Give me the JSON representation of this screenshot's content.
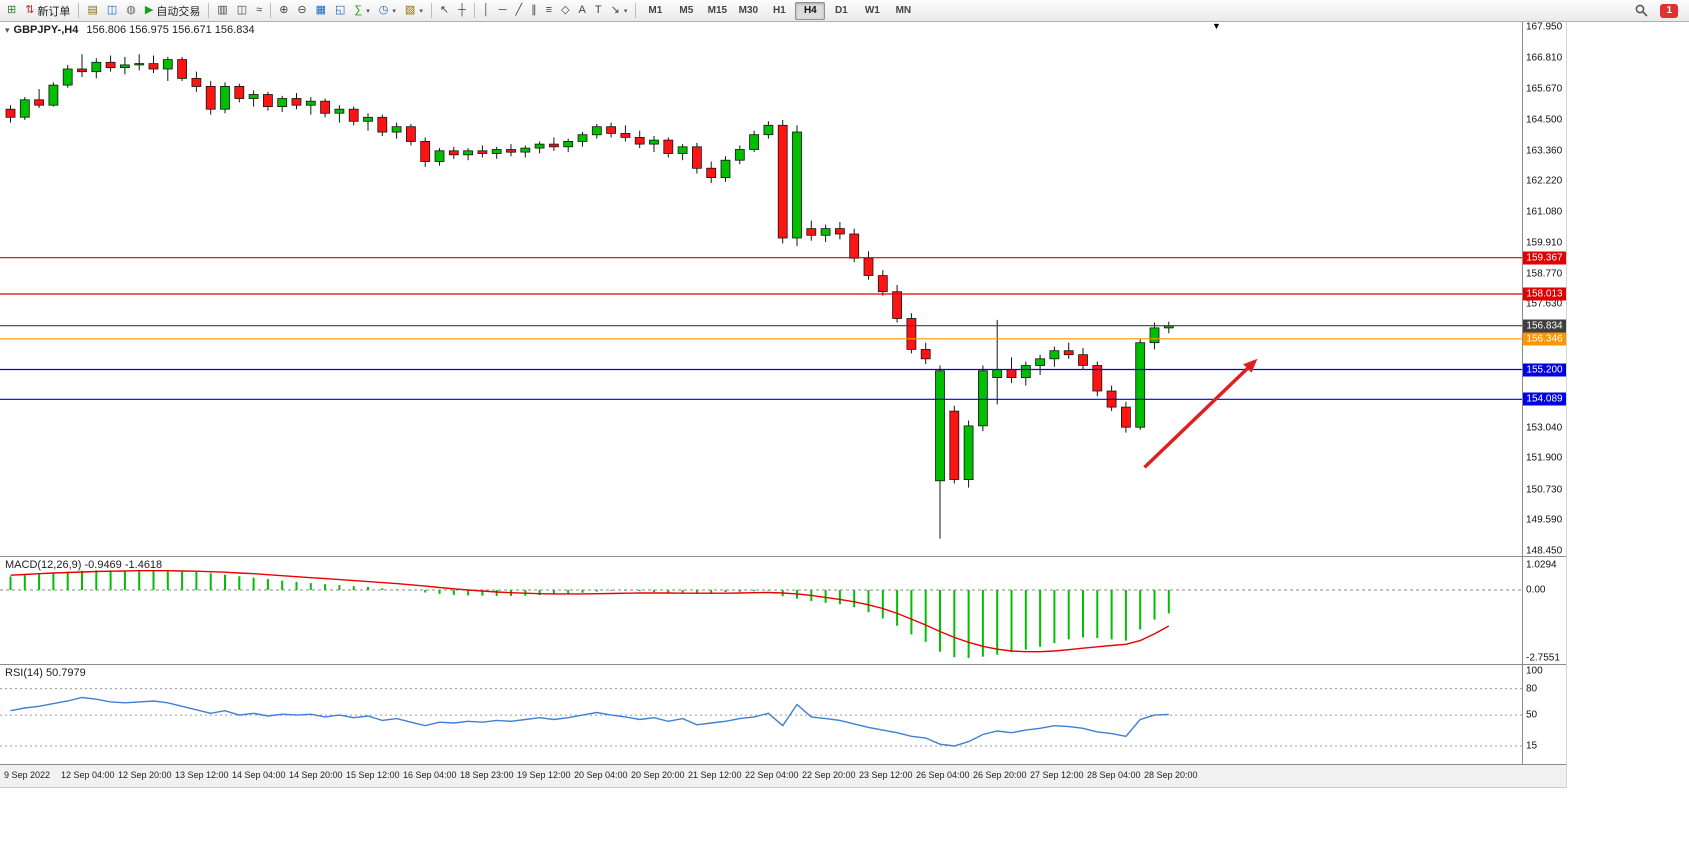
{
  "toolbar": {
    "items": [
      {
        "name": "new-chart",
        "glyph": "⊞",
        "color": "#2e7d32"
      },
      {
        "name": "new-order",
        "glyph": "⇅",
        "color": "#c62828",
        "label": "新订单"
      },
      {
        "sep": true
      },
      {
        "name": "chart-profiles",
        "glyph": "▤",
        "color": "#8d6e00"
      },
      {
        "name": "data-window",
        "glyph": "◫",
        "color": "#1565c0"
      },
      {
        "name": "navigator",
        "glyph": "◍",
        "color": "#666666"
      },
      {
        "name": "auto-trading",
        "glyph": "▶",
        "color": "#18a018",
        "label": "自动交易"
      },
      {
        "sep": true
      },
      {
        "name": "bar-chart-mode",
        "glyph": "▥",
        "color": "#444444"
      },
      {
        "name": "candlestick-mode",
        "glyph": "◫",
        "color": "#444444"
      },
      {
        "name": "line-chart-mode",
        "glyph": "≈",
        "color": "#444444"
      },
      {
        "sep": true
      },
      {
        "name": "zoom-in",
        "glyph": "⊕",
        "color": "#444444"
      },
      {
        "name": "zoom-out",
        "glyph": "⊖",
        "color": "#444444"
      },
      {
        "name": "tile-windows",
        "glyph": "▦",
        "color": "#1565c0"
      },
      {
        "name": "arrange-windows",
        "glyph": "◱",
        "color": "#1565c0"
      },
      {
        "name": "indicators",
        "glyph": "∑",
        "color": "#18a018",
        "dropdown": true
      },
      {
        "name": "periods",
        "glyph": "◷",
        "color": "#1565c0",
        "dropdown": true
      },
      {
        "name": "templates",
        "glyph": "▧",
        "color": "#8d6e00",
        "dropdown": true
      },
      {
        "sep": true
      },
      {
        "name": "cursor",
        "glyph": "↖",
        "color": "#444444"
      },
      {
        "name": "crosshair",
        "glyph": "┼",
        "color": "#444444"
      },
      {
        "sep": true
      },
      {
        "name": "vertical-line",
        "glyph": "│",
        "color": "#444444"
      },
      {
        "name": "horizontal-line",
        "glyph": "─",
        "color": "#444444"
      },
      {
        "name": "trendline",
        "glyph": "╱",
        "color": "#444444"
      },
      {
        "name": "equidistant-channel",
        "glyph": "∥",
        "color": "#444444"
      },
      {
        "name": "fibonacci",
        "glyph": "≡",
        "color": "#444444"
      },
      {
        "name": "shapes",
        "glyph": "◇",
        "color": "#444444"
      },
      {
        "name": "text",
        "glyph": "A",
        "color": "#444444"
      },
      {
        "name": "text-label",
        "glyph": "T",
        "color": "#444444"
      },
      {
        "name": "arrows-objects",
        "glyph": "↘",
        "color": "#444444",
        "dropdown": true
      },
      {
        "sep": true
      }
    ],
    "timeframes": [
      "M1",
      "M5",
      "M15",
      "M30",
      "H1",
      "H4",
      "D1",
      "W1",
      "MN"
    ],
    "active_timeframe": "H4",
    "notification_count": "1"
  },
  "chart": {
    "symbol_title": "GBPJPY-,H4",
    "ohlc": "156.806 156.975 156.671 156.834",
    "scroll_marker": "▼",
    "dropdown_glyph": "▾"
  },
  "chart_data": {
    "type": "candlestick",
    "symbol": "GBPJPY",
    "timeframe": "H4",
    "ohlc_display": {
      "open": "156.806",
      "high": "156.975",
      "low": "156.671",
      "close": "156.834"
    },
    "price_axis_labels": [
      "167.950",
      "166.810",
      "165.670",
      "164.500",
      "163.360",
      "162.220",
      "161.080",
      "159.910",
      "158.770",
      "157.630",
      "153.040",
      "151.900",
      "150.730",
      "149.590",
      "148.450"
    ],
    "hlines": [
      {
        "price": 159.367,
        "label": "159.367",
        "color": "#e00000"
      },
      {
        "price": 158.013,
        "label": "158.013",
        "color": "#e00000"
      },
      {
        "price": 156.834,
        "label": "156.834",
        "color": "#3f3f3f"
      },
      {
        "price": 156.346,
        "label": "156.346",
        "color": "#ff9500"
      },
      {
        "price": 155.2,
        "label": "155.200",
        "color": "#0000e0"
      },
      {
        "price": 154.089,
        "label": "154.089",
        "color": "#0000e0"
      }
    ],
    "trend_arrow": {
      "x1_index": 79.3,
      "price1": 151.55,
      "x2_index": 87.2,
      "price2": 155.6,
      "color": "#e02020"
    },
    "candles": [
      [
        164.9,
        165.05,
        164.4,
        164.6
      ],
      [
        164.6,
        165.35,
        164.5,
        165.25
      ],
      [
        165.25,
        165.65,
        164.95,
        165.05
      ],
      [
        165.05,
        165.9,
        165.0,
        165.8
      ],
      [
        165.8,
        166.55,
        165.7,
        166.4
      ],
      [
        166.4,
        166.95,
        166.1,
        166.3
      ],
      [
        166.3,
        166.8,
        166.05,
        166.65
      ],
      [
        166.65,
        166.9,
        166.3,
        166.45
      ],
      [
        166.45,
        166.85,
        166.2,
        166.55
      ],
      [
        166.55,
        166.95,
        166.35,
        166.6
      ],
      [
        166.6,
        166.9,
        166.25,
        166.4
      ],
      [
        166.4,
        166.85,
        165.95,
        166.75
      ],
      [
        166.75,
        166.85,
        165.95,
        166.05
      ],
      [
        166.05,
        166.3,
        165.55,
        165.75
      ],
      [
        165.75,
        165.95,
        164.7,
        164.9
      ],
      [
        164.9,
        165.9,
        164.75,
        165.75
      ],
      [
        165.75,
        165.85,
        165.15,
        165.3
      ],
      [
        165.3,
        165.6,
        165.0,
        165.45
      ],
      [
        165.45,
        165.55,
        164.85,
        165.0
      ],
      [
        165.0,
        165.4,
        164.8,
        165.3
      ],
      [
        165.3,
        165.5,
        164.9,
        165.05
      ],
      [
        165.05,
        165.35,
        164.7,
        165.2
      ],
      [
        165.2,
        165.3,
        164.6,
        164.75
      ],
      [
        164.75,
        165.05,
        164.4,
        164.9
      ],
      [
        164.9,
        165.0,
        164.3,
        164.45
      ],
      [
        164.45,
        164.75,
        164.1,
        164.6
      ],
      [
        164.6,
        164.7,
        163.9,
        164.05
      ],
      [
        164.05,
        164.4,
        163.8,
        164.25
      ],
      [
        164.25,
        164.35,
        163.55,
        163.7
      ],
      [
        163.7,
        163.85,
        162.75,
        162.95
      ],
      [
        162.95,
        163.45,
        162.8,
        163.35
      ],
      [
        163.35,
        163.5,
        163.05,
        163.2
      ],
      [
        163.2,
        163.45,
        163.0,
        163.35
      ],
      [
        163.35,
        163.55,
        163.1,
        163.25
      ],
      [
        163.25,
        163.5,
        163.05,
        163.4
      ],
      [
        163.4,
        163.6,
        163.15,
        163.3
      ],
      [
        163.3,
        163.55,
        163.1,
        163.45
      ],
      [
        163.45,
        163.7,
        163.25,
        163.6
      ],
      [
        163.6,
        163.85,
        163.35,
        163.5
      ],
      [
        163.5,
        163.8,
        163.3,
        163.7
      ],
      [
        163.7,
        164.05,
        163.5,
        163.95
      ],
      [
        163.95,
        164.35,
        163.8,
        164.25
      ],
      [
        164.25,
        164.4,
        163.85,
        164.0
      ],
      [
        164.0,
        164.3,
        163.7,
        163.85
      ],
      [
        163.85,
        164.1,
        163.45,
        163.6
      ],
      [
        163.6,
        163.9,
        163.3,
        163.75
      ],
      [
        163.75,
        163.85,
        163.1,
        163.25
      ],
      [
        163.25,
        163.6,
        163.0,
        163.5
      ],
      [
        163.5,
        163.65,
        162.5,
        162.7
      ],
      [
        162.7,
        162.95,
        162.15,
        162.35
      ],
      [
        162.35,
        163.15,
        162.2,
        163.0
      ],
      [
        163.0,
        163.55,
        162.85,
        163.4
      ],
      [
        163.4,
        164.1,
        163.3,
        163.95
      ],
      [
        163.95,
        164.45,
        163.8,
        164.3
      ],
      [
        164.3,
        164.5,
        159.9,
        160.1
      ],
      [
        160.1,
        164.3,
        159.8,
        164.05
      ],
      [
        160.45,
        160.75,
        160.0,
        160.2
      ],
      [
        160.2,
        160.6,
        159.95,
        160.45
      ],
      [
        160.45,
        160.7,
        160.05,
        160.25
      ],
      [
        160.25,
        160.45,
        159.2,
        159.35
      ],
      [
        159.35,
        159.6,
        158.55,
        158.7
      ],
      [
        158.7,
        158.9,
        157.95,
        158.1
      ],
      [
        158.1,
        158.35,
        156.95,
        157.1
      ],
      [
        157.1,
        157.3,
        155.8,
        155.95
      ],
      [
        155.95,
        156.2,
        155.4,
        155.6
      ],
      [
        151.05,
        155.35,
        148.9,
        155.15
      ],
      [
        153.65,
        153.85,
        150.95,
        151.1
      ],
      [
        151.1,
        153.3,
        150.8,
        153.1
      ],
      [
        153.1,
        155.35,
        152.9,
        155.15
      ],
      [
        154.9,
        157.05,
        153.9,
        155.2
      ],
      [
        155.2,
        155.65,
        154.7,
        154.9
      ],
      [
        154.9,
        155.5,
        154.6,
        155.35
      ],
      [
        155.35,
        155.75,
        155.0,
        155.6
      ],
      [
        155.6,
        156.05,
        155.3,
        155.9
      ],
      [
        155.9,
        156.2,
        155.6,
        155.75
      ],
      [
        155.75,
        156.0,
        155.2,
        155.35
      ],
      [
        155.35,
        155.5,
        154.2,
        154.4
      ],
      [
        154.4,
        154.6,
        153.65,
        153.8
      ],
      [
        153.8,
        154.0,
        152.85,
        153.05
      ],
      [
        153.05,
        156.35,
        152.95,
        156.2
      ],
      [
        156.2,
        156.95,
        155.95,
        156.75
      ],
      [
        156.75,
        156.98,
        156.55,
        156.83
      ]
    ],
    "time_labels": [
      "9 Sep 2022",
      "12 Sep 04:00",
      "12 Sep 20:00",
      "13 Sep 12:00",
      "14 Sep 04:00",
      "14 Sep 20:00",
      "15 Sep 12:00",
      "16 Sep 04:00",
      "18 Sep 23:00",
      "19 Sep 12:00",
      "20 Sep 04:00",
      "20 Sep 20:00",
      "21 Sep 12:00",
      "22 Sep 04:00",
      "22 Sep 20:00",
      "23 Sep 12:00",
      "26 Sep 04:00",
      "26 Sep 20:00",
      "27 Sep 12:00",
      "28 Sep 04:00",
      "28 Sep 20:00"
    ],
    "macd": {
      "label": "MACD(12,26,9)",
      "main_value": "-0.9469",
      "signal_value": "-1.4618",
      "axis_labels": [
        "1.0294",
        "0.00",
        "-2.7551"
      ],
      "histogram": [
        0.55,
        0.6,
        0.65,
        0.7,
        0.74,
        0.78,
        0.8,
        0.8,
        0.79,
        0.78,
        0.78,
        0.77,
        0.76,
        0.73,
        0.68,
        0.62,
        0.56,
        0.5,
        0.44,
        0.38,
        0.33,
        0.28,
        0.24,
        0.2,
        0.16,
        0.12,
        0.07,
        0.03,
        -0.02,
        -0.1,
        -0.16,
        -0.2,
        -0.22,
        -0.23,
        -0.24,
        -0.24,
        -0.23,
        -0.21,
        -0.18,
        -0.15,
        -0.11,
        -0.06,
        -0.03,
        -0.03,
        -0.05,
        -0.08,
        -0.12,
        -0.14,
        -0.13,
        -0.1,
        -0.08,
        -0.07,
        -0.05,
        -0.03,
        -0.25,
        -0.35,
        -0.45,
        -0.52,
        -0.58,
        -0.7,
        -0.9,
        -1.15,
        -1.45,
        -1.8,
        -2.1,
        -2.5,
        -2.72,
        -2.75,
        -2.7,
        -2.62,
        -2.52,
        -2.42,
        -2.3,
        -2.15,
        -2.0,
        -1.92,
        -1.95,
        -2.0,
        -2.05,
        -1.6,
        -1.2,
        -0.95
      ],
      "signal": [
        0.6,
        0.63,
        0.66,
        0.69,
        0.71,
        0.73,
        0.75,
        0.76,
        0.77,
        0.78,
        0.78,
        0.78,
        0.77,
        0.76,
        0.74,
        0.72,
        0.69,
        0.66,
        0.62,
        0.58,
        0.54,
        0.5,
        0.46,
        0.42,
        0.38,
        0.34,
        0.3,
        0.26,
        0.21,
        0.16,
        0.1,
        0.05,
        0.0,
        -0.04,
        -0.08,
        -0.11,
        -0.13,
        -0.15,
        -0.16,
        -0.16,
        -0.16,
        -0.15,
        -0.14,
        -0.13,
        -0.12,
        -0.12,
        -0.12,
        -0.13,
        -0.13,
        -0.13,
        -0.13,
        -0.12,
        -0.11,
        -0.1,
        -0.12,
        -0.16,
        -0.22,
        -0.3,
        -0.38,
        -0.48,
        -0.6,
        -0.75,
        -0.95,
        -1.18,
        -1.42,
        -1.68,
        -1.92,
        -2.12,
        -2.28,
        -2.4,
        -2.47,
        -2.5,
        -2.5,
        -2.47,
        -2.42,
        -2.36,
        -2.3,
        -2.25,
        -2.2,
        -2.05,
        -1.78,
        -1.46
      ]
    },
    "rsi": {
      "label": "RSI(14)",
      "value": "50.7979",
      "levels": [
        80,
        50,
        15
      ],
      "axis_labels": [
        "100",
        "80",
        "50",
        "15"
      ],
      "series": [
        55,
        58,
        60,
        63,
        66,
        70,
        68,
        65,
        64,
        65,
        66,
        64,
        60,
        56,
        52,
        55,
        50,
        52,
        49,
        51,
        50,
        51,
        48,
        50,
        47,
        49,
        44,
        46,
        42,
        38,
        42,
        41,
        43,
        42,
        44,
        43,
        45,
        47,
        45,
        47,
        50,
        53,
        50,
        48,
        45,
        47,
        43,
        46,
        39,
        41,
        43,
        46,
        48,
        52,
        38,
        62,
        48,
        46,
        44,
        40,
        36,
        33,
        30,
        26,
        24,
        17,
        15,
        20,
        28,
        32,
        30,
        33,
        35,
        38,
        37,
        35,
        31,
        29,
        26,
        45,
        50,
        50.8
      ]
    }
  }
}
